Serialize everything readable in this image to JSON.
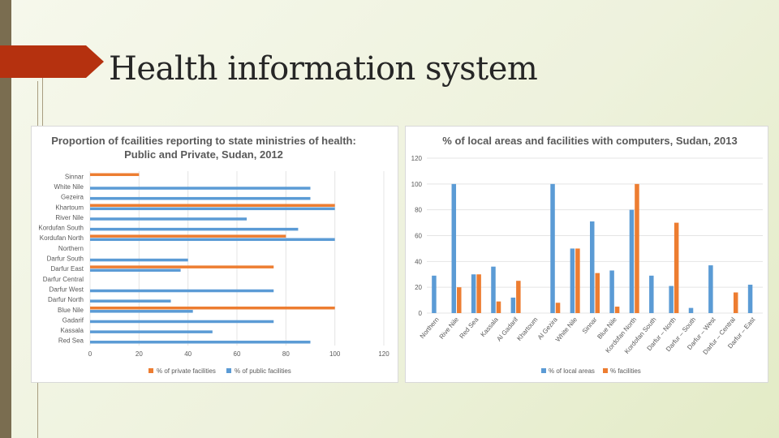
{
  "slide": {
    "title": "Health information system"
  },
  "colors": {
    "orange": "#ED7D31",
    "blue": "#5B9BD5",
    "accent_bar": "#7A6D50",
    "flag": "#B5310F"
  },
  "chart_data": [
    {
      "type": "bar",
      "orientation": "horizontal",
      "title_line1": "Proportion of fcailities reporting to state ministries of health:",
      "title_line2": "Public and Private, Sudan, 2012",
      "categories": [
        "Sinnar",
        "White Nile",
        "Gezeira",
        "Khartoum",
        "River Nile",
        "Kordufan South",
        "Kordufan North",
        "Northern",
        "Darfur South",
        "Darfur East",
        "Darfur Central",
        "Darfur West",
        "Darfur North",
        "Blue Nile",
        "Gadarif",
        "Kassala",
        "Red Sea"
      ],
      "series": [
        {
          "name": "% of private facilities",
          "color": "#ED7D31",
          "values": [
            20,
            0,
            0,
            100,
            0,
            0,
            80,
            0,
            0,
            75,
            0,
            0,
            0,
            100,
            0,
            0,
            0
          ]
        },
        {
          "name": "% of public facilities",
          "color": "#5B9BD5",
          "values": [
            0,
            90,
            90,
            100,
            64,
            85,
            100,
            0,
            40,
            37,
            0,
            75,
            33,
            42,
            75,
            50,
            90
          ]
        }
      ],
      "xlim": [
        0,
        120
      ],
      "xticks": [
        "0",
        "20",
        "40",
        "60",
        "80",
        "100",
        "120"
      ],
      "legend": "bottom"
    },
    {
      "type": "bar",
      "title": "% of local areas and facilities with computers, Sudan, 2013",
      "categories": [
        "Northern",
        "Rive Nile",
        "Red Sea",
        "Kassala",
        "Al Gadarif",
        "Khartoum",
        "Al Gezira",
        "White Nile",
        "Sinnar",
        "Blue Nile",
        "Kordofan North",
        "Kordofan South",
        "Darfur – North",
        "Darfur – South",
        "Darfur – West",
        "Darfur – Central",
        "Darfur – East"
      ],
      "series": [
        {
          "name": "% of local areas",
          "color": "#5B9BD5",
          "values": [
            29,
            100,
            30,
            36,
            12,
            0,
            100,
            50,
            71,
            33,
            80,
            29,
            21,
            4,
            37,
            0,
            22
          ]
        },
        {
          "name": "% facilities",
          "color": "#ED7D31",
          "values": [
            0,
            20,
            30,
            9,
            25,
            0,
            8,
            50,
            31,
            5,
            100,
            0,
            70,
            0,
            0,
            16,
            0
          ]
        }
      ],
      "ylim": [
        0,
        120
      ],
      "yticks": [
        "0",
        "20",
        "40",
        "60",
        "80",
        "100",
        "120"
      ],
      "legend": "bottom"
    }
  ]
}
